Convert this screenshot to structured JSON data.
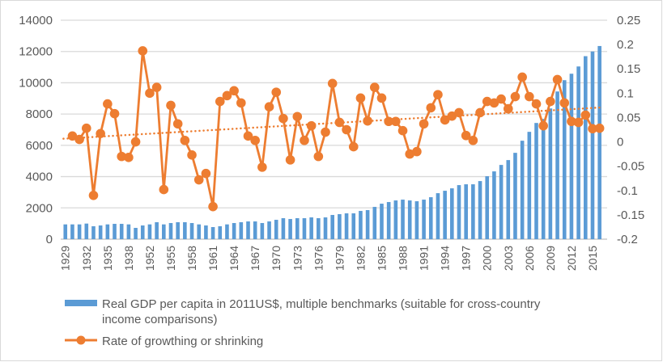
{
  "chart_data": {
    "type": "bar+line",
    "title": "",
    "grid": true,
    "legend_position": "bottom",
    "categories": [
      "1929",
      "1930",
      "1931",
      "1932",
      "1933",
      "1934",
      "1935",
      "1936",
      "1937",
      "1938",
      "1950",
      "1951",
      "1952",
      "1953",
      "1954",
      "1955",
      "1956",
      "1957",
      "1958",
      "1959",
      "1960",
      "1961",
      "1962",
      "1963",
      "1964",
      "1965",
      "1966",
      "1967",
      "1968",
      "1969",
      "1970",
      "1971",
      "1972",
      "1973",
      "1974",
      "1975",
      "1976",
      "1977",
      "1978",
      "1979",
      "1980",
      "1981",
      "1982",
      "1983",
      "1984",
      "1985",
      "1986",
      "1987",
      "1988",
      "1989",
      "1990",
      "1991",
      "1992",
      "1993",
      "1994",
      "1995",
      "1996",
      "1997",
      "1998",
      "1999",
      "2000",
      "2001",
      "2002",
      "2003",
      "2004",
      "2005",
      "2006",
      "2007",
      "2008",
      "2009",
      "2010",
      "2011",
      "2012",
      "2013",
      "2014",
      "2015",
      "2016"
    ],
    "left_axis": {
      "ylim": [
        0,
        14000
      ],
      "ticks": [
        "0",
        "2000",
        "4000",
        "6000",
        "8000",
        "10000",
        "12000",
        "14000"
      ]
    },
    "right_axis": {
      "ylim": [
        -0.2,
        0.25
      ],
      "ticks": [
        "-0.2",
        "-0.15",
        "-0.1",
        "-0.05",
        "0",
        "0.05",
        "0.1",
        "0.15",
        "0.2",
        "0.25"
      ]
    },
    "series": [
      {
        "name": "Real GDP per capita in 2011US$, multiple benchmarks (suitable for cross-country income comparisons)",
        "legend_lines": [
          "Real GDP per capita in 2011US$, multiple benchmarks (suitable for cross-country",
          "income comparisons)"
        ],
        "type": "bar",
        "axis": "left",
        "color": "#5B9BD5",
        "values": [
          946,
          946,
          946,
          998,
          826,
          877,
          946,
          980,
          980,
          946,
          722,
          877,
          946,
          1084,
          946,
          1032,
          1084,
          1084,
          1032,
          946,
          877,
          774,
          826,
          946,
          1032,
          1084,
          1135,
          1135,
          1032,
          1135,
          1238,
          1342,
          1290,
          1342,
          1342,
          1393,
          1342,
          1393,
          1548,
          1600,
          1651,
          1651,
          1806,
          1858,
          2064,
          2270,
          2374,
          2477,
          2528,
          2477,
          2425,
          2528,
          2683,
          2941,
          3096,
          3251,
          3457,
          3509,
          3509,
          3715,
          4025,
          4334,
          4747,
          5057,
          5521,
          6295,
          6863,
          7430,
          7688,
          8359,
          9443,
          10165,
          10578,
          11042,
          11700,
          12000,
          12350
        ]
      },
      {
        "name": "Rate of growthing or shrinking",
        "type": "line",
        "axis": "right",
        "color": "#ED7D31",
        "trendline": "linear",
        "values": [
          null,
          0.012,
          0.005,
          0.028,
          -0.11,
          0.017,
          0.078,
          0.058,
          -0.03,
          -0.032,
          0.0,
          0.187,
          0.1,
          0.112,
          -0.098,
          0.075,
          0.037,
          0.003,
          -0.027,
          -0.078,
          -0.065,
          -0.133,
          0.083,
          0.095,
          0.105,
          0.08,
          0.012,
          0.003,
          -0.052,
          0.072,
          0.102,
          0.048,
          -0.037,
          0.052,
          0.003,
          0.033,
          -0.03,
          0.02,
          0.12,
          0.04,
          0.025,
          -0.01,
          0.09,
          0.043,
          0.112,
          0.09,
          0.042,
          0.042,
          0.023,
          -0.025,
          -0.02,
          0.037,
          0.07,
          0.097,
          0.045,
          0.053,
          0.06,
          0.013,
          0.003,
          0.06,
          0.083,
          0.08,
          0.088,
          0.068,
          0.093,
          0.133,
          0.093,
          0.078,
          0.033,
          0.083,
          0.128,
          0.08,
          0.042,
          0.04,
          0.055,
          0.027,
          0.028
        ]
      }
    ],
    "x_tick_every": 3,
    "xlabel": "",
    "ylabel": "",
    "y2label": ""
  }
}
